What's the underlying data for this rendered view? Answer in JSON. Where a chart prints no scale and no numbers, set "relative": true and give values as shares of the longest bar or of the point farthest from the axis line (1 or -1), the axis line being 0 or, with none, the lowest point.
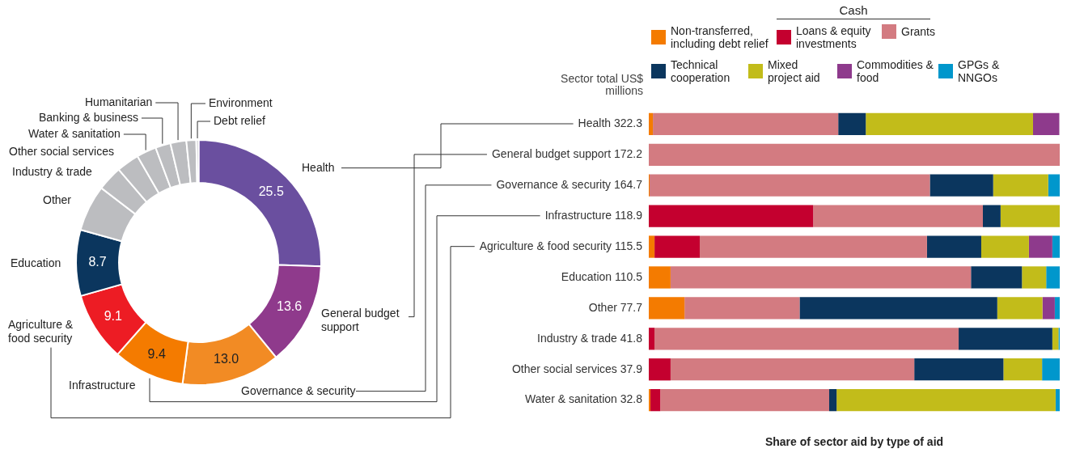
{
  "chart_data": [
    {
      "type": "donut",
      "categories": [
        "Health",
        "General budget support",
        "Governance & security",
        "Infrastructure",
        "Agriculture & food security",
        "Education",
        "Other",
        "Industry & trade",
        "Other social services",
        "Water & sanitation",
        "Banking & business",
        "Humanitarian",
        "Environment",
        "Debt relief"
      ],
      "values": [
        25.5,
        13.6,
        13.0,
        9.4,
        9.1,
        8.7,
        6.1,
        3.3,
        3.0,
        2.6,
        2.0,
        2.1,
        1.3,
        0.3
      ],
      "colors": [
        "#6a4f9f",
        "#8f3a8c",
        "#f28b24",
        "#f47b00",
        "#ed1c24",
        "#0b365e",
        "#bcbdc0",
        "#bcbdc0",
        "#bcbdc0",
        "#bcbdc0",
        "#bcbdc0",
        "#bcbdc0",
        "#bcbdc0",
        "#bcbdc0"
      ],
      "value_labels": [
        "25.5",
        "13.6",
        "13.0",
        "9.4",
        "9.1",
        "8.7",
        null,
        null,
        null,
        null,
        null,
        null,
        null,
        null
      ]
    },
    {
      "type": "bar",
      "orientation": "horizontal",
      "stacked": true,
      "relative": true,
      "legend": "top",
      "xlabel": "Share of sector aid by type of aid",
      "annotations": [
        "Cash",
        "Sector total US$ millions"
      ],
      "categories": [
        "Health 322.3",
        "General budget support 172.2",
        "Governance & security 164.7",
        "Infrastructure 118.9",
        "Agriculture & food security 115.5",
        "Education 110.5",
        "Other 77.7",
        "Industry & trade 41.8",
        "Other social services 37.9",
        "Water & sanitation 32.8"
      ],
      "series": [
        {
          "name": "Non-transferred, including debt relief",
          "color": "#f47b00",
          "values": [
            0.01,
            0,
            0.002,
            0,
            0.014,
            0.053,
            0.087,
            0,
            0,
            0.004
          ]
        },
        {
          "name": "Loans & equity investments",
          "color": "#c4002f",
          "values": [
            0,
            0,
            0,
            0.4,
            0.11,
            0,
            0,
            0.014,
            0.053,
            0.024
          ]
        },
        {
          "name": "Grants",
          "color": "#d37b81",
          "values": [
            0.451,
            1,
            0.682,
            0.413,
            0.553,
            0.731,
            0.28,
            0.74,
            0.593,
            0.411
          ]
        },
        {
          "name": "Technical cooperation",
          "color": "#0b365e",
          "values": [
            0.067,
            0,
            0.154,
            0.043,
            0.132,
            0.124,
            0.481,
            0.228,
            0.217,
            0.018
          ]
        },
        {
          "name": "Mixed project aid",
          "color": "#c2bc1a",
          "values": [
            0.407,
            0,
            0.134,
            0.144,
            0.116,
            0.059,
            0.11,
            0.015,
            0.094,
            0.533
          ]
        },
        {
          "name": "Commodities & food",
          "color": "#8e3a8c",
          "values": [
            0.064,
            0,
            0,
            0,
            0.057,
            0,
            0.03,
            0,
            0,
            0
          ]
        },
        {
          "name": "GPGs & NNGOs",
          "color": "#0097cc",
          "values": [
            null,
            0,
            0.028,
            0,
            0.018,
            0.033,
            0.012,
            0.003,
            0.043,
            0.01
          ]
        }
      ]
    }
  ]
}
